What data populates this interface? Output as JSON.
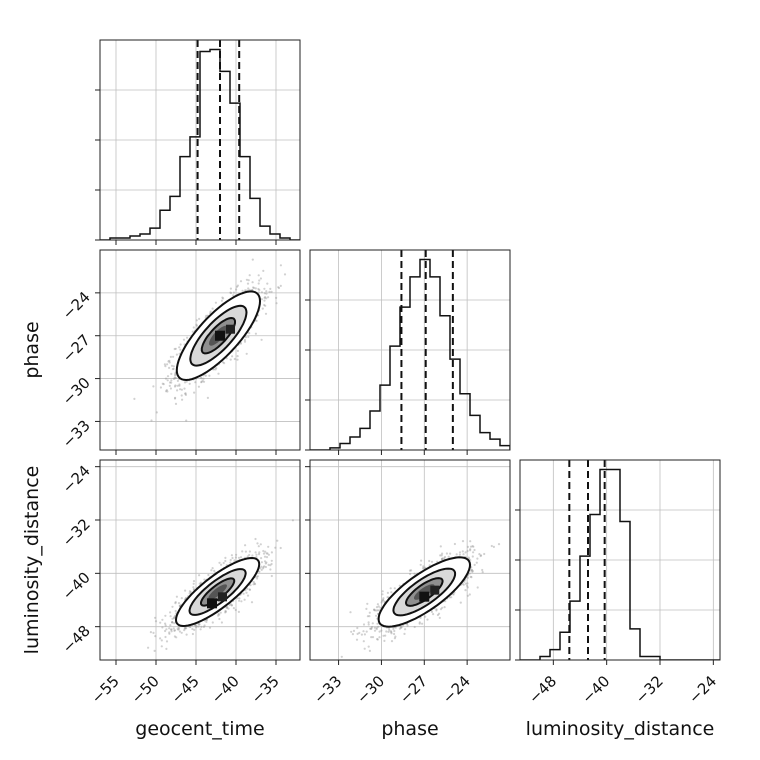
{
  "chart_data": {
    "type": "corner",
    "parameters": [
      "geocent_time",
      "phase",
      "luminosity_distance"
    ],
    "grid": true,
    "axes": {
      "geocent_time": {
        "range": [
          -57,
          -32
        ],
        "ticks": [
          -55,
          -50,
          -45,
          -40,
          -35
        ]
      },
      "phase": {
        "range": [
          -35,
          -21
        ],
        "ticks": [
          -33,
          -30,
          -27,
          -24
        ]
      },
      "luminosity_distance": {
        "range": [
          -53,
          -23
        ],
        "ticks": [
          -48,
          -40,
          -32,
          -24
        ]
      }
    },
    "histograms": {
      "geocent_time": {
        "edges_start": -57,
        "bin_width": 1.25,
        "counts": [
          0,
          1,
          1,
          2,
          3,
          6,
          15,
          22,
          42,
          52,
          95,
          96,
          85,
          69,
          42,
          21,
          7,
          3,
          1,
          0
        ],
        "quantiles": [
          -44.8,
          -42.0,
          -39.6
        ]
      },
      "phase": {
        "edges_start": -35,
        "bin_width": 0.7,
        "counts": [
          0,
          0,
          1,
          3,
          6,
          10,
          18,
          30,
          48,
          66,
          80,
          88,
          80,
          62,
          42,
          26,
          16,
          8,
          5,
          2
        ],
        "quantiles": [
          -28.6,
          -26.9,
          -25.0
        ]
      },
      "luminosity_distance": {
        "edges_start": -53,
        "bin_width": 1.5,
        "counts": [
          0,
          0,
          1,
          3,
          8,
          17,
          30,
          42,
          55,
          55,
          40,
          9,
          1,
          1,
          0,
          0,
          0,
          0,
          0,
          0
        ],
        "quantiles": [
          -45.6,
          -42.8,
          -40.3
        ]
      }
    },
    "joint": [
      {
        "x": "geocent_time",
        "y": "phase",
        "mean": [
          -42.2,
          -27.0
        ],
        "sd": [
          2.6,
          1.55
        ],
        "corr": 0.78,
        "peak": [
          -42.0,
          -27.0
        ]
      },
      {
        "x": "geocent_time",
        "y": "luminosity_distance",
        "mean": [
          -42.3,
          -42.8
        ],
        "sd": [
          2.6,
          2.55
        ],
        "corr": 0.82,
        "peak": [
          -43.0,
          -44.5
        ]
      },
      {
        "x": "phase",
        "y": "luminosity_distance",
        "mean": [
          -27.0,
          -42.8
        ],
        "sd": [
          1.6,
          2.6
        ],
        "corr": 0.78,
        "peak": [
          -27.0,
          -43.5
        ]
      }
    ]
  }
}
